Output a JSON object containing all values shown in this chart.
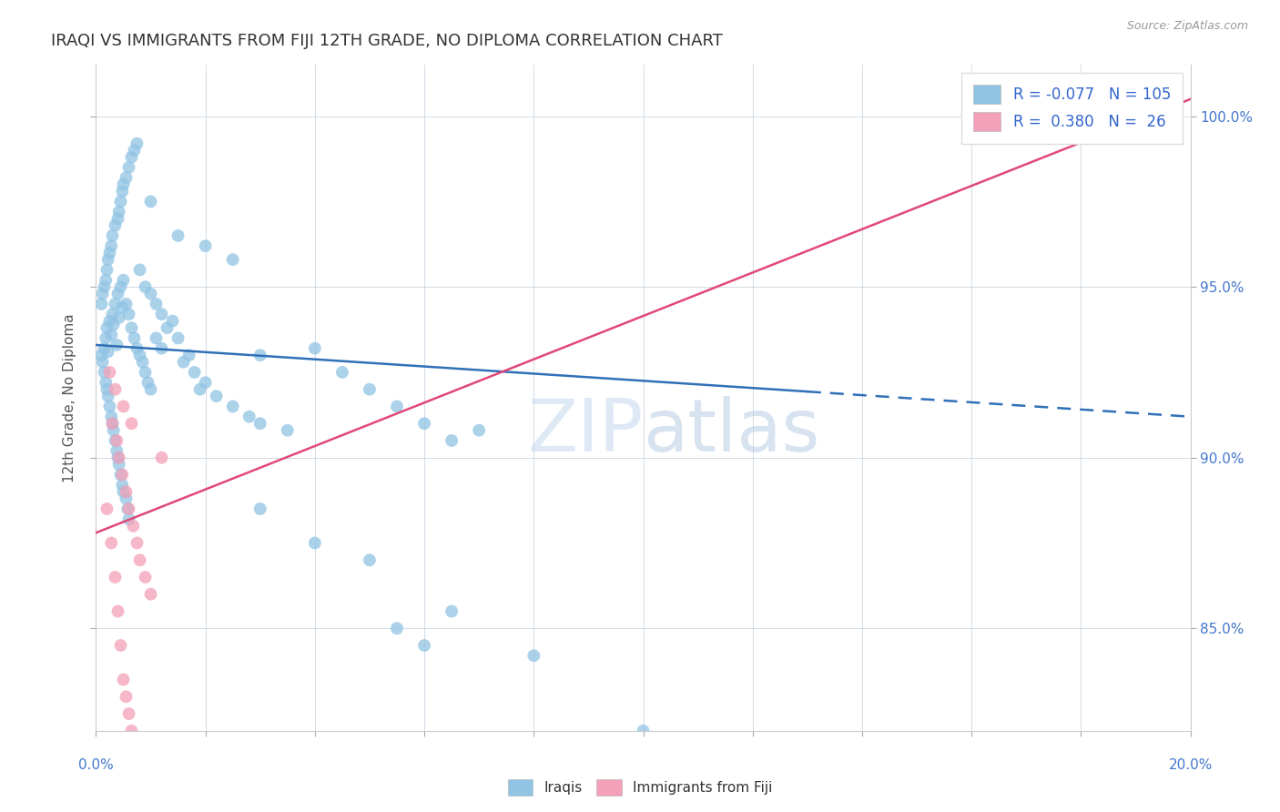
{
  "title": "IRAQI VS IMMIGRANTS FROM FIJI 12TH GRADE, NO DIPLOMA CORRELATION CHART",
  "source": "Source: ZipAtlas.com",
  "ylabel": "12th Grade, No Diploma",
  "xlim": [
    0.0,
    20.0
  ],
  "ylim": [
    82.0,
    101.5
  ],
  "right_yticks": [
    85.0,
    90.0,
    95.0,
    100.0
  ],
  "right_yticklabels": [
    "85.0%",
    "90.0%",
    "95.0%",
    "100.0%"
  ],
  "watermark": "ZIPatlas",
  "iraqis_color": "#90c4e4",
  "fiji_color": "#f4a0b8",
  "trend_blue_color": "#3070b8",
  "trend_pink_color": "#e04878",
  "blue_trend_x0": 0.0,
  "blue_trend_y0": 93.3,
  "blue_trend_x1": 20.0,
  "blue_trend_y1": 91.2,
  "blue_solid_end": 13.0,
  "pink_trend_x0": 0.0,
  "pink_trend_y0": 87.8,
  "pink_trend_x1": 20.0,
  "pink_trend_y1": 100.5,
  "iraqis_scatter": [
    [
      0.15,
      93.2
    ],
    [
      0.18,
      93.5
    ],
    [
      0.2,
      93.8
    ],
    [
      0.22,
      93.1
    ],
    [
      0.25,
      94.0
    ],
    [
      0.28,
      93.6
    ],
    [
      0.3,
      94.2
    ],
    [
      0.32,
      93.9
    ],
    [
      0.35,
      94.5
    ],
    [
      0.38,
      93.3
    ],
    [
      0.4,
      94.8
    ],
    [
      0.42,
      94.1
    ],
    [
      0.45,
      95.0
    ],
    [
      0.48,
      94.4
    ],
    [
      0.5,
      95.2
    ],
    [
      0.1,
      93.0
    ],
    [
      0.12,
      92.8
    ],
    [
      0.15,
      92.5
    ],
    [
      0.18,
      92.2
    ],
    [
      0.2,
      92.0
    ],
    [
      0.22,
      91.8
    ],
    [
      0.25,
      91.5
    ],
    [
      0.28,
      91.2
    ],
    [
      0.3,
      91.0
    ],
    [
      0.32,
      90.8
    ],
    [
      0.35,
      90.5
    ],
    [
      0.38,
      90.2
    ],
    [
      0.4,
      90.0
    ],
    [
      0.42,
      89.8
    ],
    [
      0.45,
      89.5
    ],
    [
      0.48,
      89.2
    ],
    [
      0.5,
      89.0
    ],
    [
      0.55,
      88.8
    ],
    [
      0.58,
      88.5
    ],
    [
      0.6,
      88.2
    ],
    [
      0.1,
      94.5
    ],
    [
      0.12,
      94.8
    ],
    [
      0.15,
      95.0
    ],
    [
      0.18,
      95.2
    ],
    [
      0.2,
      95.5
    ],
    [
      0.22,
      95.8
    ],
    [
      0.25,
      96.0
    ],
    [
      0.28,
      96.2
    ],
    [
      0.3,
      96.5
    ],
    [
      0.35,
      96.8
    ],
    [
      0.4,
      97.0
    ],
    [
      0.42,
      97.2
    ],
    [
      0.45,
      97.5
    ],
    [
      0.48,
      97.8
    ],
    [
      0.5,
      98.0
    ],
    [
      0.55,
      98.2
    ],
    [
      0.6,
      98.5
    ],
    [
      0.65,
      98.8
    ],
    [
      0.7,
      99.0
    ],
    [
      0.75,
      99.2
    ],
    [
      0.55,
      94.5
    ],
    [
      0.6,
      94.2
    ],
    [
      0.65,
      93.8
    ],
    [
      0.7,
      93.5
    ],
    [
      0.75,
      93.2
    ],
    [
      0.8,
      93.0
    ],
    [
      0.85,
      92.8
    ],
    [
      0.9,
      92.5
    ],
    [
      0.95,
      92.2
    ],
    [
      1.0,
      92.0
    ],
    [
      1.1,
      93.5
    ],
    [
      1.2,
      93.2
    ],
    [
      1.3,
      93.8
    ],
    [
      1.4,
      94.0
    ],
    [
      1.5,
      93.5
    ],
    [
      1.6,
      92.8
    ],
    [
      1.7,
      93.0
    ],
    [
      1.8,
      92.5
    ],
    [
      1.9,
      92.0
    ],
    [
      2.0,
      92.2
    ],
    [
      2.2,
      91.8
    ],
    [
      2.5,
      91.5
    ],
    [
      2.8,
      91.2
    ],
    [
      3.0,
      91.0
    ],
    [
      3.5,
      90.8
    ],
    [
      4.0,
      93.2
    ],
    [
      4.5,
      92.5
    ],
    [
      5.0,
      92.0
    ],
    [
      5.5,
      91.5
    ],
    [
      6.0,
      91.0
    ],
    [
      6.5,
      90.5
    ],
    [
      7.0,
      90.8
    ],
    [
      3.0,
      88.5
    ],
    [
      4.0,
      87.5
    ],
    [
      5.0,
      87.0
    ],
    [
      6.0,
      84.5
    ],
    [
      8.0,
      84.2
    ],
    [
      10.0,
      82.0
    ],
    [
      5.5,
      85.0
    ],
    [
      6.5,
      85.5
    ],
    [
      1.0,
      97.5
    ],
    [
      1.5,
      96.5
    ],
    [
      2.0,
      96.2
    ],
    [
      2.5,
      95.8
    ],
    [
      3.0,
      93.0
    ],
    [
      0.8,
      95.5
    ],
    [
      0.9,
      95.0
    ],
    [
      1.0,
      94.8
    ],
    [
      1.1,
      94.5
    ],
    [
      1.2,
      94.2
    ]
  ],
  "fiji_scatter": [
    [
      0.2,
      88.5
    ],
    [
      0.28,
      87.5
    ],
    [
      0.35,
      86.5
    ],
    [
      0.4,
      85.5
    ],
    [
      0.45,
      84.5
    ],
    [
      0.5,
      83.5
    ],
    [
      0.55,
      83.0
    ],
    [
      0.6,
      82.5
    ],
    [
      0.65,
      82.0
    ],
    [
      0.3,
      91.0
    ],
    [
      0.38,
      90.5
    ],
    [
      0.42,
      90.0
    ],
    [
      0.48,
      89.5
    ],
    [
      0.55,
      89.0
    ],
    [
      0.6,
      88.5
    ],
    [
      0.68,
      88.0
    ],
    [
      0.75,
      87.5
    ],
    [
      0.8,
      87.0
    ],
    [
      0.9,
      86.5
    ],
    [
      1.0,
      86.0
    ],
    [
      0.25,
      92.5
    ],
    [
      0.35,
      92.0
    ],
    [
      0.5,
      91.5
    ],
    [
      0.65,
      91.0
    ],
    [
      1.2,
      90.0
    ],
    [
      19.0,
      100.0
    ]
  ]
}
